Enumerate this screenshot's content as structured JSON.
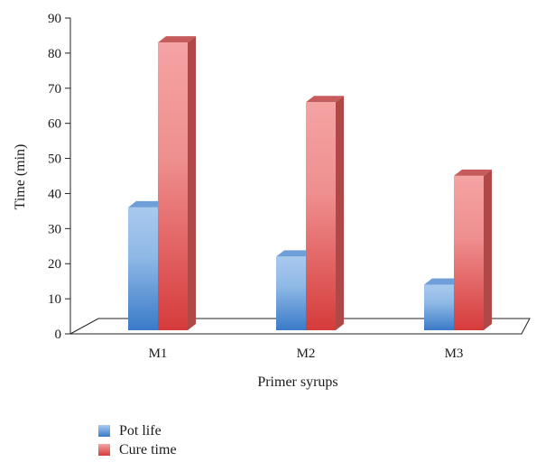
{
  "chart_data": {
    "type": "bar",
    "style": "3d-clustered",
    "categories": [
      "M1",
      "M2",
      "M3"
    ],
    "series": [
      {
        "name": "Pot life",
        "values": [
          35,
          21,
          13
        ],
        "color": "#5b8fd0"
      },
      {
        "name": "Cure time",
        "values": [
          82,
          65,
          44
        ],
        "color": "#e86c6c"
      }
    ],
    "title": "",
    "xlabel": "Primer syrups",
    "ylabel": "Time (min)",
    "ylim": [
      0,
      90
    ],
    "yticks": [
      0,
      10,
      20,
      30,
      40,
      50,
      60,
      70,
      80,
      90
    ],
    "grid": false,
    "legend_position": "bottom-left"
  }
}
